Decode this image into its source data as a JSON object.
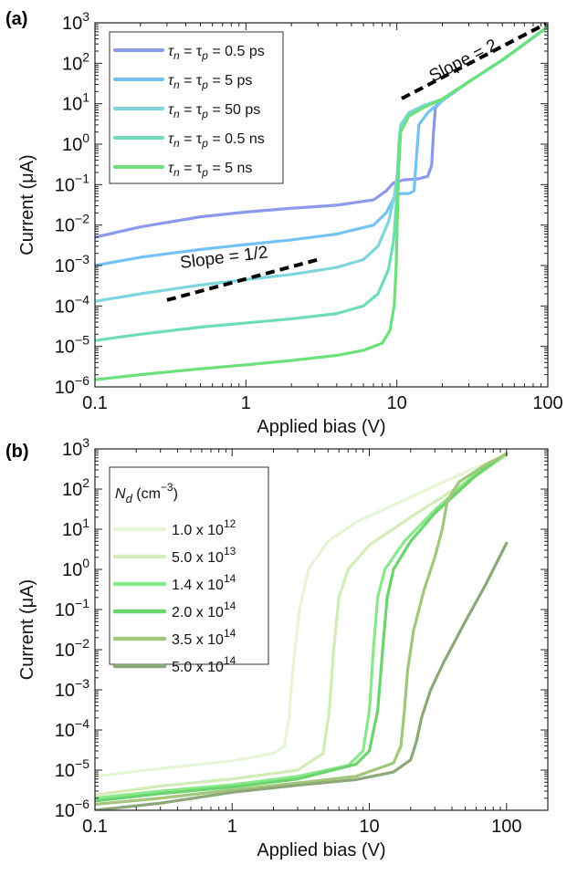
{
  "panel_labels": [
    "(a)",
    "(b)"
  ],
  "chart_data": [
    {
      "type": "line",
      "panel": "(a)",
      "xlabel": "Applied bias (V)",
      "ylabel": "Current (μA)",
      "xscale": "log",
      "yscale": "log",
      "xlim": [
        0.1,
        100
      ],
      "ylim": [
        1e-06,
        1000
      ],
      "x_ticks": [
        0.1,
        1,
        10,
        100
      ],
      "x_tick_labels": [
        "0.1",
        "1",
        "10",
        "100"
      ],
      "y_ticks": [
        1e-06,
        1e-05,
        0.0001,
        0.001,
        0.01,
        0.1,
        1,
        10,
        100,
        1000
      ],
      "y_tick_labels": [
        {
          "base": "10",
          "exp": "−6"
        },
        {
          "base": "10",
          "exp": "−5"
        },
        {
          "base": "10",
          "exp": "−4"
        },
        {
          "base": "10",
          "exp": "−3"
        },
        {
          "base": "10",
          "exp": "−2"
        },
        {
          "base": "10",
          "exp": "−1"
        },
        {
          "base": "10",
          "exp": "0"
        },
        {
          "base": "10",
          "exp": "1"
        },
        {
          "base": "10",
          "exp": "2"
        },
        {
          "base": "10",
          "exp": "3"
        }
      ],
      "grid": false,
      "legend_position": "top-left",
      "series": [
        {
          "legend": {
            "pre": "τ",
            "sub1": "n",
            "mid": " = τ",
            "sub2": "p",
            "post": " = 0.5 ps"
          },
          "color": "#8c98ec",
          "points": [
            [
              0.1,
              0.005
            ],
            [
              0.2,
              0.009
            ],
            [
              0.5,
              0.016
            ],
            [
              1,
              0.021
            ],
            [
              2,
              0.026
            ],
            [
              4,
              0.031
            ],
            [
              7,
              0.042
            ],
            [
              8.5,
              0.07
            ],
            [
              9.5,
              0.11
            ],
            [
              11,
              0.13
            ],
            [
              14,
              0.14
            ],
            [
              16,
              0.16
            ],
            [
              17,
              0.3
            ],
            [
              17.5,
              2
            ],
            [
              18,
              8
            ],
            [
              20,
              12
            ],
            [
              30,
              35
            ],
            [
              50,
              120
            ],
            [
              70,
              300
            ],
            [
              100,
              800
            ]
          ]
        },
        {
          "legend": {
            "pre": "τ",
            "sub1": "n",
            "mid": " = τ",
            "sub2": "p",
            "post": " = 5 ps"
          },
          "color": "#74c2f4",
          "points": [
            [
              0.1,
              0.001
            ],
            [
              0.2,
              0.0016
            ],
            [
              0.5,
              0.0025
            ],
            [
              1,
              0.0033
            ],
            [
              2,
              0.0043
            ],
            [
              4,
              0.006
            ],
            [
              7,
              0.01
            ],
            [
              8.5,
              0.02
            ],
            [
              9.5,
              0.045
            ],
            [
              10.5,
              0.06
            ],
            [
              12,
              0.06
            ],
            [
              13,
              0.07
            ],
            [
              13.5,
              0.5
            ],
            [
              14,
              3
            ],
            [
              16,
              6
            ],
            [
              20,
              12
            ],
            [
              30,
              35
            ],
            [
              50,
              120
            ],
            [
              70,
              300
            ],
            [
              100,
              800
            ]
          ]
        },
        {
          "legend": {
            "pre": "τ",
            "sub1": "n",
            "mid": " = τ",
            "sub2": "p",
            "post": " = 50 ps"
          },
          "color": "#7ed6dc",
          "points": [
            [
              0.1,
              0.00013
            ],
            [
              0.2,
              0.0002
            ],
            [
              0.5,
              0.00033
            ],
            [
              1,
              0.00045
            ],
            [
              2,
              0.0006
            ],
            [
              4,
              0.0009
            ],
            [
              6,
              0.0014
            ],
            [
              7.5,
              0.003
            ],
            [
              8.8,
              0.012
            ],
            [
              9.6,
              0.05
            ],
            [
              10.1,
              0.2
            ],
            [
              10.3,
              1
            ],
            [
              10.6,
              3
            ],
            [
              12,
              6
            ],
            [
              15,
              9
            ],
            [
              20,
              13
            ],
            [
              30,
              35
            ],
            [
              50,
              120
            ],
            [
              70,
              300
            ],
            [
              100,
              800
            ]
          ]
        },
        {
          "legend": {
            "pre": "τ",
            "sub1": "n",
            "mid": " = τ",
            "sub2": "p",
            "post": " = 0.5 ns"
          },
          "color": "#6edcb4",
          "points": [
            [
              0.1,
              1.4e-05
            ],
            [
              0.2,
              2e-05
            ],
            [
              0.5,
              3e-05
            ],
            [
              1,
              3.8e-05
            ],
            [
              2,
              4.8e-05
            ],
            [
              4,
              6.5e-05
            ],
            [
              6,
              0.0001
            ],
            [
              7.5,
              0.0002
            ],
            [
              8.8,
              0.0008
            ],
            [
              9.5,
              0.004
            ],
            [
              9.9,
              0.03
            ],
            [
              10.2,
              0.3
            ],
            [
              10.5,
              2
            ],
            [
              12,
              5
            ],
            [
              15,
              8
            ],
            [
              20,
              13
            ],
            [
              30,
              35
            ],
            [
              50,
              120
            ],
            [
              70,
              300
            ],
            [
              100,
              800
            ]
          ]
        },
        {
          "legend": {
            "pre": "τ",
            "sub1": "n",
            "mid": " = τ",
            "sub2": "p",
            "post": " = 5 ns"
          },
          "color": "#6ce07a",
          "points": [
            [
              0.1,
              1.5e-06
            ],
            [
              0.2,
              2e-06
            ],
            [
              0.5,
              2.8e-06
            ],
            [
              1,
              3.5e-06
            ],
            [
              2,
              4.5e-06
            ],
            [
              4,
              6e-06
            ],
            [
              6,
              8e-06
            ],
            [
              8,
              1.2e-05
            ],
            [
              9,
              2.5e-05
            ],
            [
              9.6,
              0.0001
            ],
            [
              9.9,
              0.001
            ],
            [
              10.1,
              0.02
            ],
            [
              10.3,
              0.3
            ],
            [
              10.6,
              2
            ],
            [
              12,
              5
            ],
            [
              15,
              8
            ],
            [
              20,
              13
            ],
            [
              30,
              35
            ],
            [
              50,
              120
            ],
            [
              70,
              300
            ],
            [
              100,
              800
            ]
          ]
        }
      ],
      "annotations": [
        {
          "text": "Slope = 1/2",
          "segment": [
            [
              0.3,
              0.0011
            ],
            [
              3,
              0.0011
            ],
            [
              0.3,
              0.00015
            ],
            [
              3,
              0.0015
            ]
          ],
          "line": [
            [
              0.3,
              0.00014
            ],
            [
              3,
              0.0014
            ]
          ],
          "label_at": [
            0.9,
            0.00085
          ]
        },
        {
          "text": "Slope = 2",
          "line": [
            [
              10,
              30
            ],
            [
              100,
              1000
            ]
          ],
          "label_at": [
            32,
            400
          ]
        }
      ]
    },
    {
      "type": "line",
      "panel": "(b)",
      "xlabel": "Applied bias (V)",
      "ylabel": "Current (μA)",
      "xscale": "log",
      "yscale": "log",
      "xlim": [
        0.1,
        200
      ],
      "ylim": [
        1e-06,
        1000
      ],
      "x_ticks": [
        0.1,
        1,
        10,
        100
      ],
      "x_tick_labels": [
        "0.1",
        "1",
        "10",
        "100"
      ],
      "y_ticks": [
        1e-06,
        1e-05,
        0.0001,
        0.001,
        0.01,
        0.1,
        1,
        10,
        100,
        1000
      ],
      "y_tick_labels": [
        {
          "base": "10",
          "exp": "−6"
        },
        {
          "base": "10",
          "exp": "−5"
        },
        {
          "base": "10",
          "exp": "−4"
        },
        {
          "base": "10",
          "exp": "−3"
        },
        {
          "base": "10",
          "exp": "−2"
        },
        {
          "base": "10",
          "exp": "−1"
        },
        {
          "base": "10",
          "exp": "0"
        },
        {
          "base": "10",
          "exp": "1"
        },
        {
          "base": "10",
          "exp": "2"
        },
        {
          "base": "10",
          "exp": "3"
        }
      ],
      "grid": false,
      "legend_position": "top-left",
      "legend_title": {
        "pre": "N",
        "sub": "d",
        "post": " (cm",
        "sup": "−3",
        "end": ")"
      },
      "series": [
        {
          "legend": {
            "mant": "1.0 x 10",
            "exp": "12"
          },
          "color": "#e6f5d6",
          "points": [
            [
              0.1,
              7e-06
            ],
            [
              0.3,
              1.1e-05
            ],
            [
              1,
              1.7e-05
            ],
            [
              2,
              2.6e-05
            ],
            [
              2.4,
              4e-05
            ],
            [
              2.6,
              0.0002
            ],
            [
              2.8,
              0.005
            ],
            [
              3.1,
              0.1
            ],
            [
              3.6,
              1
            ],
            [
              5,
              5
            ],
            [
              8,
              15
            ],
            [
              15,
              40
            ],
            [
              30,
              120
            ],
            [
              60,
              350
            ],
            [
              100,
              700
            ]
          ]
        },
        {
          "legend": {
            "mant": "5.0 x 10",
            "exp": "13"
          },
          "color": "#d4ecb8",
          "points": [
            [
              0.1,
              2.4e-06
            ],
            [
              0.3,
              4e-06
            ],
            [
              1,
              6e-06
            ],
            [
              3,
              1e-05
            ],
            [
              4.6,
              2.6e-05
            ],
            [
              5.1,
              0.0003
            ],
            [
              5.5,
              0.01
            ],
            [
              6,
              0.2
            ],
            [
              7,
              1
            ],
            [
              10,
              4
            ],
            [
              20,
              20
            ],
            [
              40,
              90
            ],
            [
              70,
              300
            ],
            [
              100,
              700
            ]
          ]
        },
        {
          "legend": {
            "mant": "1.4 x 10",
            "exp": "14"
          },
          "color": "#8ae88a",
          "points": [
            [
              0.1,
              2e-06
            ],
            [
              0.3,
              3e-06
            ],
            [
              1,
              4.3e-06
            ],
            [
              3,
              7e-06
            ],
            [
              7,
              1.3e-05
            ],
            [
              9,
              3e-05
            ],
            [
              10,
              0.0003
            ],
            [
              10.7,
              0.01
            ],
            [
              11.5,
              0.2
            ],
            [
              13,
              1
            ],
            [
              18,
              5
            ],
            [
              30,
              30
            ],
            [
              60,
              250
            ],
            [
              100,
              750
            ]
          ]
        },
        {
          "legend": {
            "mant": "2.0 x 10",
            "exp": "14"
          },
          "color": "#6cd46e",
          "points": [
            [
              0.1,
              1.7e-06
            ],
            [
              0.3,
              2.6e-06
            ],
            [
              1,
              3.8e-06
            ],
            [
              3,
              6e-06
            ],
            [
              8,
              1.4e-05
            ],
            [
              10,
              3e-05
            ],
            [
              11.5,
              0.0003
            ],
            [
              12.5,
              0.01
            ],
            [
              13.5,
              0.2
            ],
            [
              15,
              1
            ],
            [
              20,
              5
            ],
            [
              30,
              25
            ],
            [
              60,
              220
            ],
            [
              100,
              780
            ]
          ]
        },
        {
          "legend": {
            "mant": "3.5 x 10",
            "exp": "14"
          },
          "color": "#a2c67c",
          "points": [
            [
              0.1,
              1.4e-06
            ],
            [
              0.3,
              2e-06
            ],
            [
              1,
              3.2e-06
            ],
            [
              3,
              4.8e-06
            ],
            [
              8,
              7e-06
            ],
            [
              15,
              1.5e-05
            ],
            [
              17,
              4e-05
            ],
            [
              18,
              0.0003
            ],
            [
              19,
              0.003
            ],
            [
              21,
              0.03
            ],
            [
              25,
              0.3
            ],
            [
              30,
              2
            ],
            [
              34,
              10
            ],
            [
              37,
              50
            ],
            [
              45,
              150
            ],
            [
              70,
              400
            ],
            [
              100,
              750
            ]
          ]
        },
        {
          "legend": {
            "mant": "5.0 x 10",
            "exp": "14"
          },
          "color": "#8ca878",
          "points": [
            [
              0.1,
              1e-06
            ],
            [
              0.3,
              1.5e-06
            ],
            [
              1,
              2.8e-06
            ],
            [
              3,
              4.2e-06
            ],
            [
              8,
              5.8e-06
            ],
            [
              15,
              9e-06
            ],
            [
              20,
              1.8e-05
            ],
            [
              22,
              5e-05
            ],
            [
              24,
              0.0002
            ],
            [
              28,
              0.001
            ],
            [
              35,
              0.005
            ],
            [
              50,
              0.05
            ],
            [
              70,
              0.4
            ],
            [
              85,
              1.5
            ],
            [
              100,
              4.5
            ]
          ]
        }
      ]
    }
  ]
}
